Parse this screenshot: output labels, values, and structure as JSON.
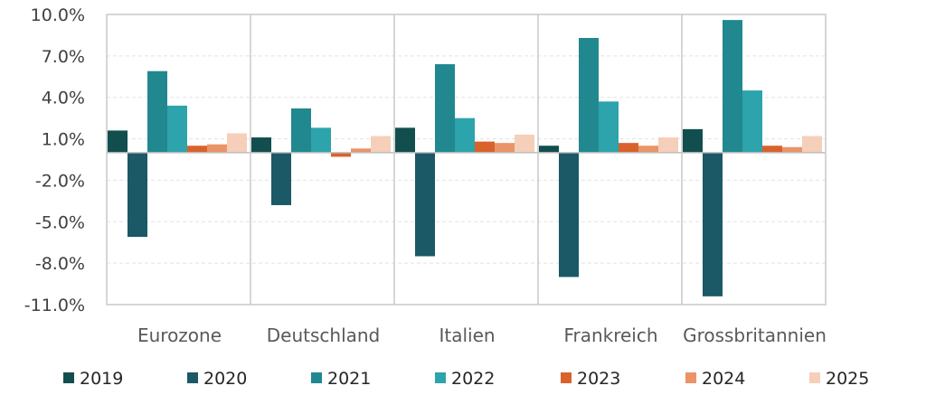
{
  "chart_data": {
    "type": "bar",
    "categories": [
      "Eurozone",
      "Deutschland",
      "Italien",
      "Frankreich",
      "Grossbritannien"
    ],
    "series": [
      {
        "name": "2019",
        "color": "#124e4e",
        "values": [
          1.6,
          1.1,
          1.8,
          0.5,
          1.7
        ]
      },
      {
        "name": "2020",
        "color": "#1a5965",
        "values": [
          -6.1,
          -3.8,
          -7.5,
          -9.0,
          -10.4
        ]
      },
      {
        "name": "2021",
        "color": "#21888f",
        "values": [
          5.9,
          3.2,
          6.4,
          8.3,
          9.6
        ]
      },
      {
        "name": "2022",
        "color": "#2da3ac",
        "values": [
          3.4,
          1.8,
          2.5,
          3.7,
          4.5
        ]
      },
      {
        "name": "2023",
        "color": "#d9622b",
        "values": [
          0.5,
          -0.3,
          0.8,
          0.7,
          0.5
        ]
      },
      {
        "name": "2024",
        "color": "#ea9468",
        "values": [
          0.6,
          0.3,
          0.7,
          0.5,
          0.4
        ]
      },
      {
        "name": "2025",
        "color": "#f5cfb9",
        "values": [
          1.4,
          1.2,
          1.3,
          1.1,
          1.2
        ]
      }
    ],
    "yticks": [
      "10.0%",
      "7.0%",
      "4.0%",
      "1.0%",
      "-2.0%",
      "-5.0%",
      "-8.0%",
      "-11.0%"
    ],
    "ytick_values": [
      10,
      7,
      4,
      1,
      -2,
      -5,
      -8,
      -11
    ],
    "ylim": [
      -11,
      10
    ],
    "xlabel": "",
    "ylabel": "",
    "title": "",
    "legend_position": "bottom",
    "grid": "horizontal dashed"
  }
}
